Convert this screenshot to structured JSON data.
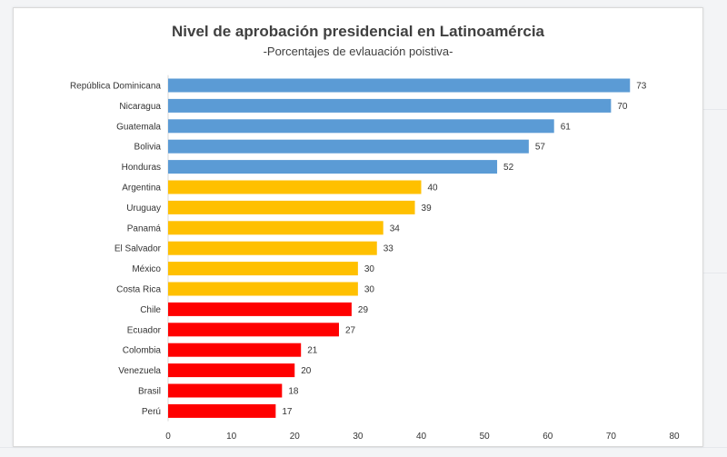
{
  "chart_data": {
    "type": "bar",
    "orientation": "horizontal",
    "title": "Nivel de aprobación presidencial en Latinoamércia",
    "subtitle": "-Porcentajes de evlauación poistiva-",
    "xlabel": "",
    "ylabel": "",
    "xlim": [
      0,
      80
    ],
    "x_ticks": [
      0,
      10,
      20,
      30,
      40,
      50,
      60,
      70,
      80
    ],
    "grid": false,
    "legend": "none",
    "categories": [
      "República Dominicana",
      "Nicaragua",
      "Guatemala",
      "Bolivia",
      "Honduras",
      "Argentina",
      "Uruguay",
      "Panamá",
      "El Salvador",
      "México",
      "Costa Rica",
      "Chile",
      "Ecuador",
      "Colombia",
      "Venezuela",
      "Brasil",
      "Perú"
    ],
    "values": [
      73,
      70,
      61,
      57,
      52,
      40,
      39,
      34,
      33,
      30,
      30,
      29,
      27,
      21,
      20,
      18,
      17
    ],
    "bar_colors": [
      "#5b9bd5",
      "#5b9bd5",
      "#5b9bd5",
      "#5b9bd5",
      "#5b9bd5",
      "#ffc000",
      "#ffc000",
      "#ffc000",
      "#ffc000",
      "#ffc000",
      "#ffc000",
      "#ff0000",
      "#ff0000",
      "#ff0000",
      "#ff0000",
      "#ff0000",
      "#ff0000"
    ]
  }
}
